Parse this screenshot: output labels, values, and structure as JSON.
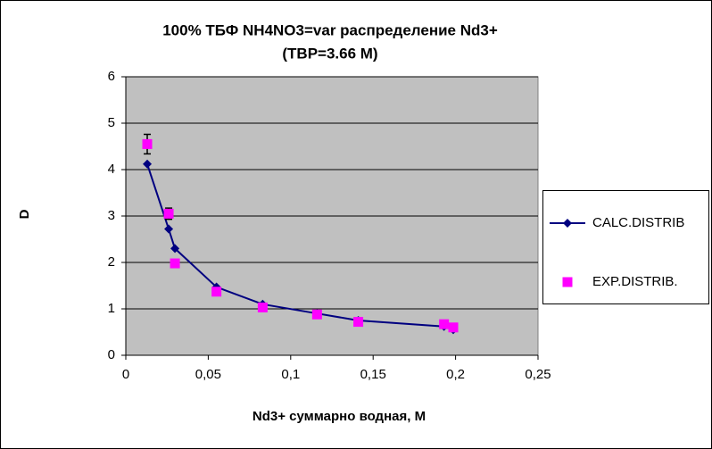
{
  "chart_data": {
    "type": "scatter",
    "title_lines": [
      "100%  ТБФ  NH4NO3=var распределение Nd3+",
      "(TBP=3.66 M)"
    ],
    "x_label": "Nd3+ суммарно   водная, М",
    "y_label": "D",
    "xlim": [
      0,
      0.25
    ],
    "ylim": [
      0,
      6
    ],
    "xticks": [
      0,
      {
        "value": 0.05,
        "label": "0,05"
      },
      {
        "value": 0.1,
        "label": "0,1"
      },
      {
        "value": 0.15,
        "label": "0,15"
      },
      {
        "value": 0.2,
        "label": "0,2"
      },
      {
        "value": 0.25,
        "label": "0,25"
      }
    ],
    "yticks": [
      0,
      1,
      2,
      3,
      4,
      5,
      6
    ],
    "grid": true,
    "legend": "right",
    "series": [
      {
        "name": "CALC.DISTRIB",
        "color": "#000080",
        "marker": "diamond",
        "line": true,
        "x": [
          0.013,
          0.026,
          0.0298,
          0.055,
          0.083,
          0.116,
          0.141,
          0.193,
          0.1986
        ],
        "values": [
          4.12,
          2.72,
          2.3,
          1.47,
          1.1,
          0.9,
          0.75,
          0.62,
          0.55
        ]
      },
      {
        "name": "EXP.DISTRIB.",
        "color": "#ff00ff",
        "marker": "square",
        "line": false,
        "x": [
          0.013,
          0.026,
          0.0298,
          0.055,
          0.083,
          0.116,
          0.141,
          0.193,
          0.1986
        ],
        "values": [
          4.55,
          3.05,
          1.98,
          1.37,
          1.03,
          0.88,
          0.72,
          0.67,
          0.6
        ],
        "errors": [
          0.21,
          0.12,
          null,
          null,
          null,
          null,
          null,
          null,
          null
        ]
      }
    ]
  }
}
